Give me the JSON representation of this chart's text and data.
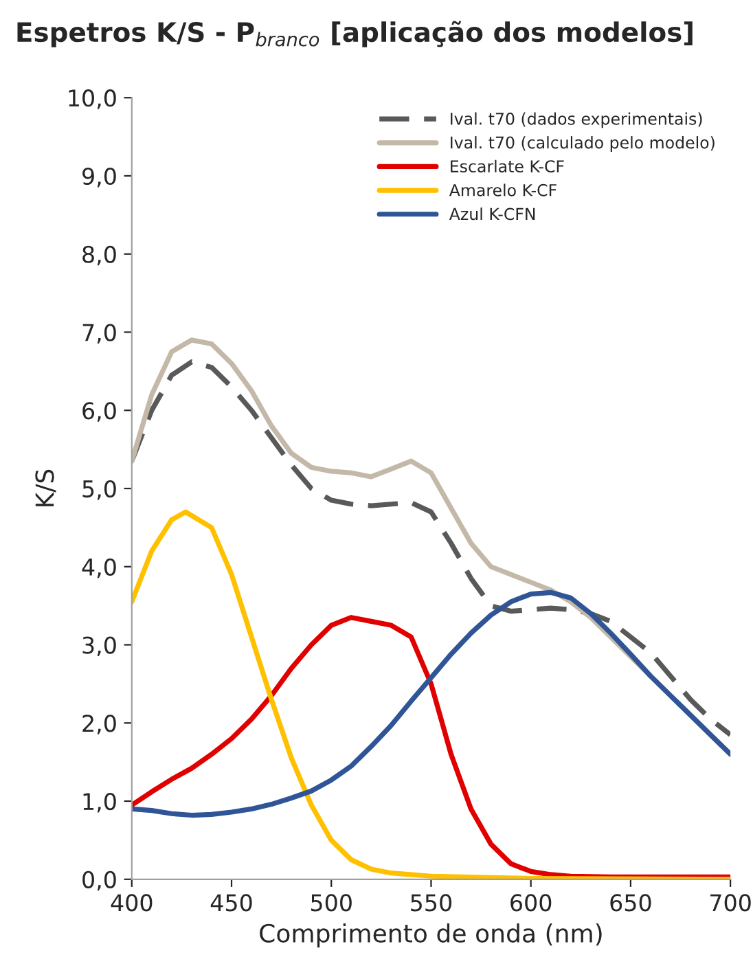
{
  "chart_data": {
    "type": "line",
    "title": "Espetros K/S - P$_{branco}$ [aplicação dos modelos]",
    "xlabel": "Comprimento de onda (nm)",
    "ylabel": "K/S",
    "xlim": [
      400,
      700
    ],
    "xticks": [
      400,
      450,
      500,
      550,
      600,
      650,
      700
    ],
    "ylim": [
      0,
      10
    ],
    "yticks": [
      {
        "value": 0,
        "label": "0,0"
      },
      {
        "value": 1,
        "label": "1,0"
      },
      {
        "value": 2,
        "label": "2,0"
      },
      {
        "value": 3,
        "label": "3,0"
      },
      {
        "value": 4,
        "label": "4,0"
      },
      {
        "value": 5,
        "label": "5,0"
      },
      {
        "value": 6,
        "label": "6,0"
      },
      {
        "value": 7,
        "label": "7,0"
      },
      {
        "value": 8,
        "label": "8,0"
      },
      {
        "value": 9,
        "label": "9,0"
      },
      {
        "value": 10,
        "label": "10,0"
      }
    ],
    "grid": false,
    "legend": "top right",
    "marker": "none",
    "series": [
      {
        "name": "Ival. t70 (dados experimentais)",
        "color": "#595959",
        "line_style": "dashed",
        "x": [
          400,
          410,
          420,
          430,
          440,
          450,
          460,
          470,
          480,
          490,
          500,
          510,
          520,
          530,
          540,
          550,
          560,
          570,
          580,
          590,
          600,
          610,
          620,
          630,
          640,
          650,
          660,
          670,
          680,
          690,
          700
        ],
        "values": [
          5.35,
          6.0,
          6.45,
          6.62,
          6.55,
          6.3,
          6.0,
          5.65,
          5.3,
          5.0,
          4.85,
          4.8,
          4.78,
          4.8,
          4.82,
          4.7,
          4.3,
          3.85,
          3.5,
          3.43,
          3.45,
          3.47,
          3.45,
          3.4,
          3.3,
          3.1,
          2.9,
          2.6,
          2.3,
          2.05,
          1.85
        ]
      },
      {
        "name": "Ival. t70 (calculado pelo modelo)",
        "color": "#c4b8a8",
        "line_style": "solid",
        "x": [
          400,
          410,
          420,
          430,
          440,
          450,
          460,
          470,
          480,
          490,
          500,
          510,
          520,
          530,
          540,
          550,
          560,
          570,
          580,
          590,
          600,
          610,
          620,
          630,
          640,
          650,
          660,
          670,
          680,
          690,
          700
        ],
        "values": [
          5.35,
          6.2,
          6.75,
          6.9,
          6.85,
          6.6,
          6.25,
          5.8,
          5.45,
          5.27,
          5.22,
          5.2,
          5.15,
          5.25,
          5.35,
          5.2,
          4.75,
          4.3,
          4.0,
          3.9,
          3.8,
          3.7,
          3.55,
          3.35,
          3.1,
          2.85,
          2.6,
          2.35,
          2.1,
          1.85,
          1.6
        ]
      },
      {
        "name": "Escarlate K-CF",
        "color": "#e00000",
        "line_style": "solid",
        "x": [
          400,
          410,
          420,
          430,
          440,
          450,
          460,
          470,
          480,
          490,
          500,
          510,
          520,
          530,
          540,
          550,
          560,
          570,
          580,
          590,
          600,
          610,
          620,
          640,
          700
        ],
        "values": [
          0.95,
          1.12,
          1.28,
          1.42,
          1.6,
          1.8,
          2.05,
          2.35,
          2.7,
          3.0,
          3.25,
          3.35,
          3.3,
          3.25,
          3.1,
          2.5,
          1.6,
          0.9,
          0.45,
          0.2,
          0.1,
          0.06,
          0.04,
          0.03,
          0.03
        ]
      },
      {
        "name": "Amarelo K-CF",
        "color": "#ffc000",
        "line_style": "solid",
        "x": [
          400,
          410,
          420,
          427,
          440,
          450,
          460,
          470,
          480,
          490,
          500,
          510,
          520,
          530,
          550,
          600,
          700
        ],
        "values": [
          3.55,
          4.2,
          4.6,
          4.7,
          4.5,
          3.9,
          3.1,
          2.3,
          1.55,
          0.95,
          0.5,
          0.25,
          0.13,
          0.08,
          0.04,
          0.01,
          0.0
        ]
      },
      {
        "name": "Azul K-CFN",
        "color": "#2f5597",
        "line_style": "solid",
        "x": [
          400,
          410,
          420,
          430,
          440,
          450,
          460,
          470,
          480,
          490,
          500,
          510,
          520,
          530,
          540,
          550,
          560,
          570,
          580,
          590,
          600,
          610,
          620,
          630,
          640,
          650,
          660,
          670,
          680,
          690,
          700
        ],
        "values": [
          0.9,
          0.88,
          0.84,
          0.82,
          0.83,
          0.86,
          0.9,
          0.96,
          1.04,
          1.13,
          1.27,
          1.45,
          1.7,
          1.97,
          2.28,
          2.58,
          2.88,
          3.15,
          3.38,
          3.55,
          3.65,
          3.67,
          3.6,
          3.4,
          3.15,
          2.88,
          2.6,
          2.35,
          2.1,
          1.85,
          1.6
        ]
      }
    ]
  }
}
